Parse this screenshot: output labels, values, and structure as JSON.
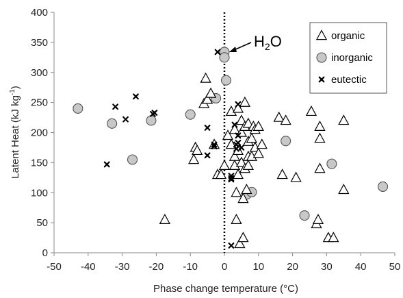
{
  "chart_data": {
    "type": "scatter",
    "xlabel": "Phase change temperature (°C)",
    "ylabel": "Latent Heat (kJ kg",
    "ylabel_sup": "-1",
    "ylabel_end": ")",
    "xlim": [
      -50,
      50
    ],
    "ylim": [
      0,
      400
    ],
    "x_ticks": [
      -50,
      -40,
      -30,
      -20,
      -10,
      0,
      10,
      20,
      30,
      40,
      50
    ],
    "y_ticks": [
      0,
      50,
      100,
      150,
      200,
      250,
      300,
      350,
      400
    ],
    "grid": false,
    "legend_position": "top-right",
    "reference_line": {
      "x": 0,
      "style": "dotted"
    },
    "annotation": {
      "text": "H",
      "sub": "2",
      "text_end": "O",
      "x": 0,
      "y": 334
    },
    "series": [
      {
        "name": "organic",
        "marker": "triangle",
        "points": [
          [
            -17.5,
            55
          ],
          [
            -9,
            155
          ],
          [
            -8.5,
            175
          ],
          [
            -8,
            170
          ],
          [
            -6,
            248
          ],
          [
            -5.5,
            290
          ],
          [
            -5,
            255
          ],
          [
            -4,
            265
          ],
          [
            -3,
            180
          ],
          [
            -2,
            130
          ],
          [
            -1,
            130
          ],
          [
            0,
            145
          ],
          [
            1,
            195
          ],
          [
            2,
            235
          ],
          [
            2,
            180
          ],
          [
            3,
            160
          ],
          [
            3,
            145
          ],
          [
            3,
            205
          ],
          [
            3.5,
            55
          ],
          [
            3.5,
            100
          ],
          [
            4,
            130
          ],
          [
            4,
            240
          ],
          [
            4,
            170
          ],
          [
            4.5,
            15
          ],
          [
            5,
            200
          ],
          [
            5,
            220
          ],
          [
            5,
            150
          ],
          [
            5.5,
            25
          ],
          [
            5.5,
            90
          ],
          [
            6,
            250
          ],
          [
            6,
            210
          ],
          [
            6,
            140
          ],
          [
            6.5,
            105
          ],
          [
            7,
            215
          ],
          [
            7,
            185
          ],
          [
            7,
            160
          ],
          [
            7,
            145
          ],
          [
            8,
            190
          ],
          [
            8,
            160
          ],
          [
            8.5,
            210
          ],
          [
            9,
            205
          ],
          [
            9,
            175
          ],
          [
            10,
            165
          ],
          [
            10,
            210
          ],
          [
            11,
            180
          ],
          [
            16,
            225
          ],
          [
            17,
            130
          ],
          [
            18,
            220
          ],
          [
            21,
            125
          ],
          [
            25.5,
            235
          ],
          [
            27,
            48
          ],
          [
            27.5,
            55
          ],
          [
            28,
            140
          ],
          [
            28,
            190
          ],
          [
            28,
            210
          ],
          [
            30.5,
            25
          ],
          [
            32,
            25
          ],
          [
            35,
            105
          ],
          [
            35,
            220
          ]
        ]
      },
      {
        "name": "inorganic",
        "marker": "circle",
        "points": [
          [
            -43,
            240
          ],
          [
            -33,
            215
          ],
          [
            -27,
            155
          ],
          [
            -21.5,
            220
          ],
          [
            -10,
            230
          ],
          [
            -2.5,
            257
          ],
          [
            0,
            334
          ],
          [
            0,
            325
          ],
          [
            0.5,
            287
          ],
          [
            6.5,
            97
          ],
          [
            8,
            101
          ],
          [
            18,
            186
          ],
          [
            23.5,
            62
          ],
          [
            31.5,
            148
          ],
          [
            46.5,
            110
          ]
        ]
      },
      {
        "name": "eutectic",
        "marker": "x",
        "points": [
          [
            -34.5,
            147
          ],
          [
            -32,
            243
          ],
          [
            -29,
            222
          ],
          [
            -26,
            260
          ],
          [
            -21,
            231
          ],
          [
            -20.5,
            233
          ],
          [
            -5,
            208
          ],
          [
            -5,
            162
          ],
          [
            -3,
            180
          ],
          [
            -3,
            177
          ],
          [
            -2,
            334
          ],
          [
            2,
            128
          ],
          [
            2,
            124
          ],
          [
            2,
            122
          ],
          [
            2,
            12
          ],
          [
            3,
            213
          ],
          [
            3.5,
            180
          ],
          [
            3.5,
            173
          ],
          [
            4,
            247
          ],
          [
            4,
            195
          ],
          [
            4,
            183
          ],
          [
            5,
            175
          ]
        ]
      }
    ]
  }
}
